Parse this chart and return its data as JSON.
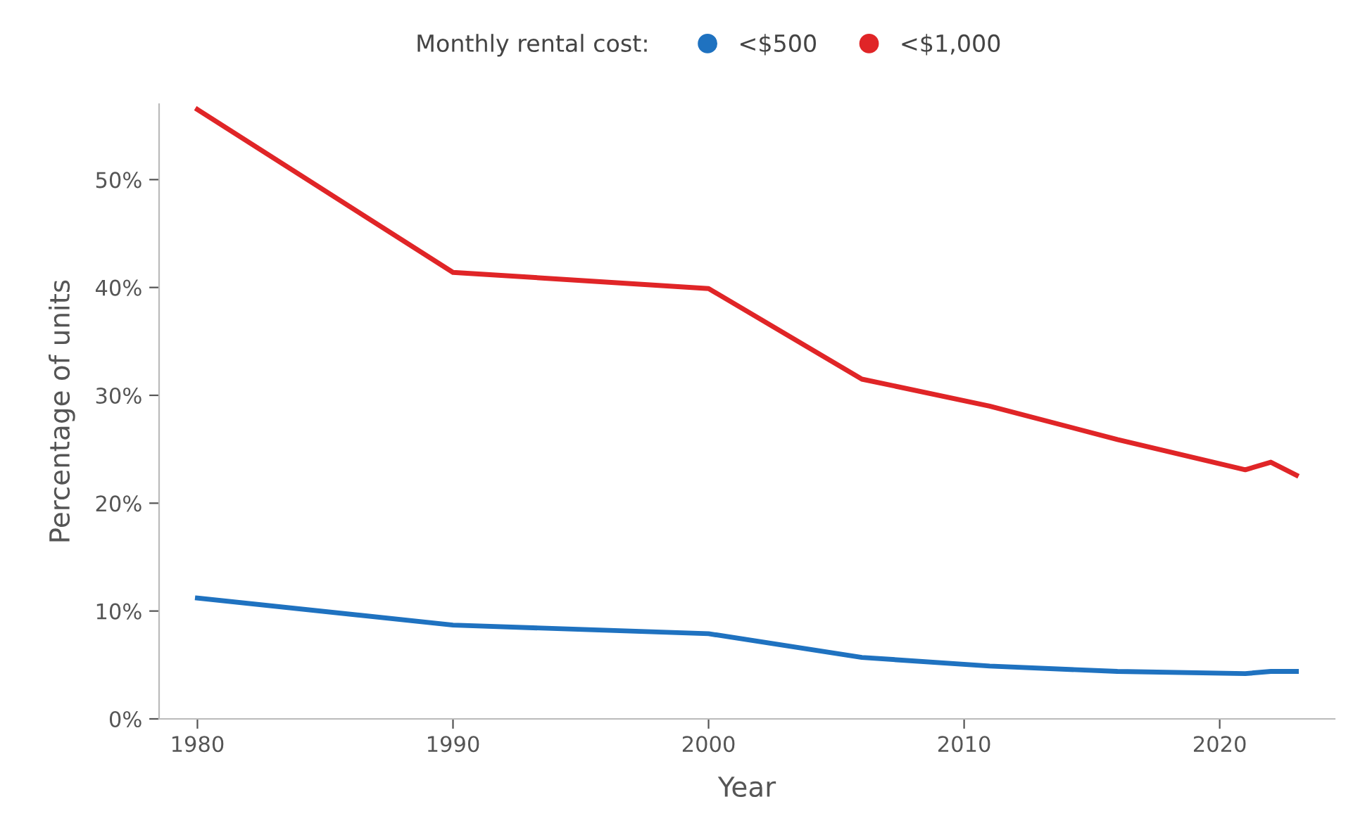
{
  "chart_data": {
    "type": "line",
    "xlabel": "Year",
    "ylabel": "Percentage of units",
    "legend_title": "Monthly rental cost:",
    "legend": "top",
    "x": [
      1980,
      1990,
      2000,
      2006,
      2011,
      2016,
      2021,
      2022,
      2023
    ],
    "series": [
      {
        "name": "<$500",
        "color": "#1f72c0",
        "values": [
          11.2,
          8.7,
          7.9,
          5.7,
          4.9,
          4.4,
          4.2,
          4.4,
          4.4
        ]
      },
      {
        "name": "<$1,000",
        "color": "#e02527",
        "values": [
          56.5,
          41.4,
          39.9,
          31.5,
          29.0,
          25.9,
          23.1,
          23.8,
          22.6
        ]
      }
    ],
    "xlim": [
      1978.5,
      2024.5
    ],
    "xticks": [
      1980,
      1990,
      2000,
      2010,
      2020
    ],
    "ylim": [
      0,
      57
    ],
    "yticks": [
      {
        "value": 0,
        "label": "0%"
      },
      {
        "value": 10,
        "label": "10%"
      },
      {
        "value": 20,
        "label": "20%"
      },
      {
        "value": 30,
        "label": "30%"
      },
      {
        "value": 40,
        "label": "40%"
      },
      {
        "value": 50,
        "label": "50%"
      }
    ],
    "grid": false,
    "marker": "none",
    "line_style": "solid"
  }
}
